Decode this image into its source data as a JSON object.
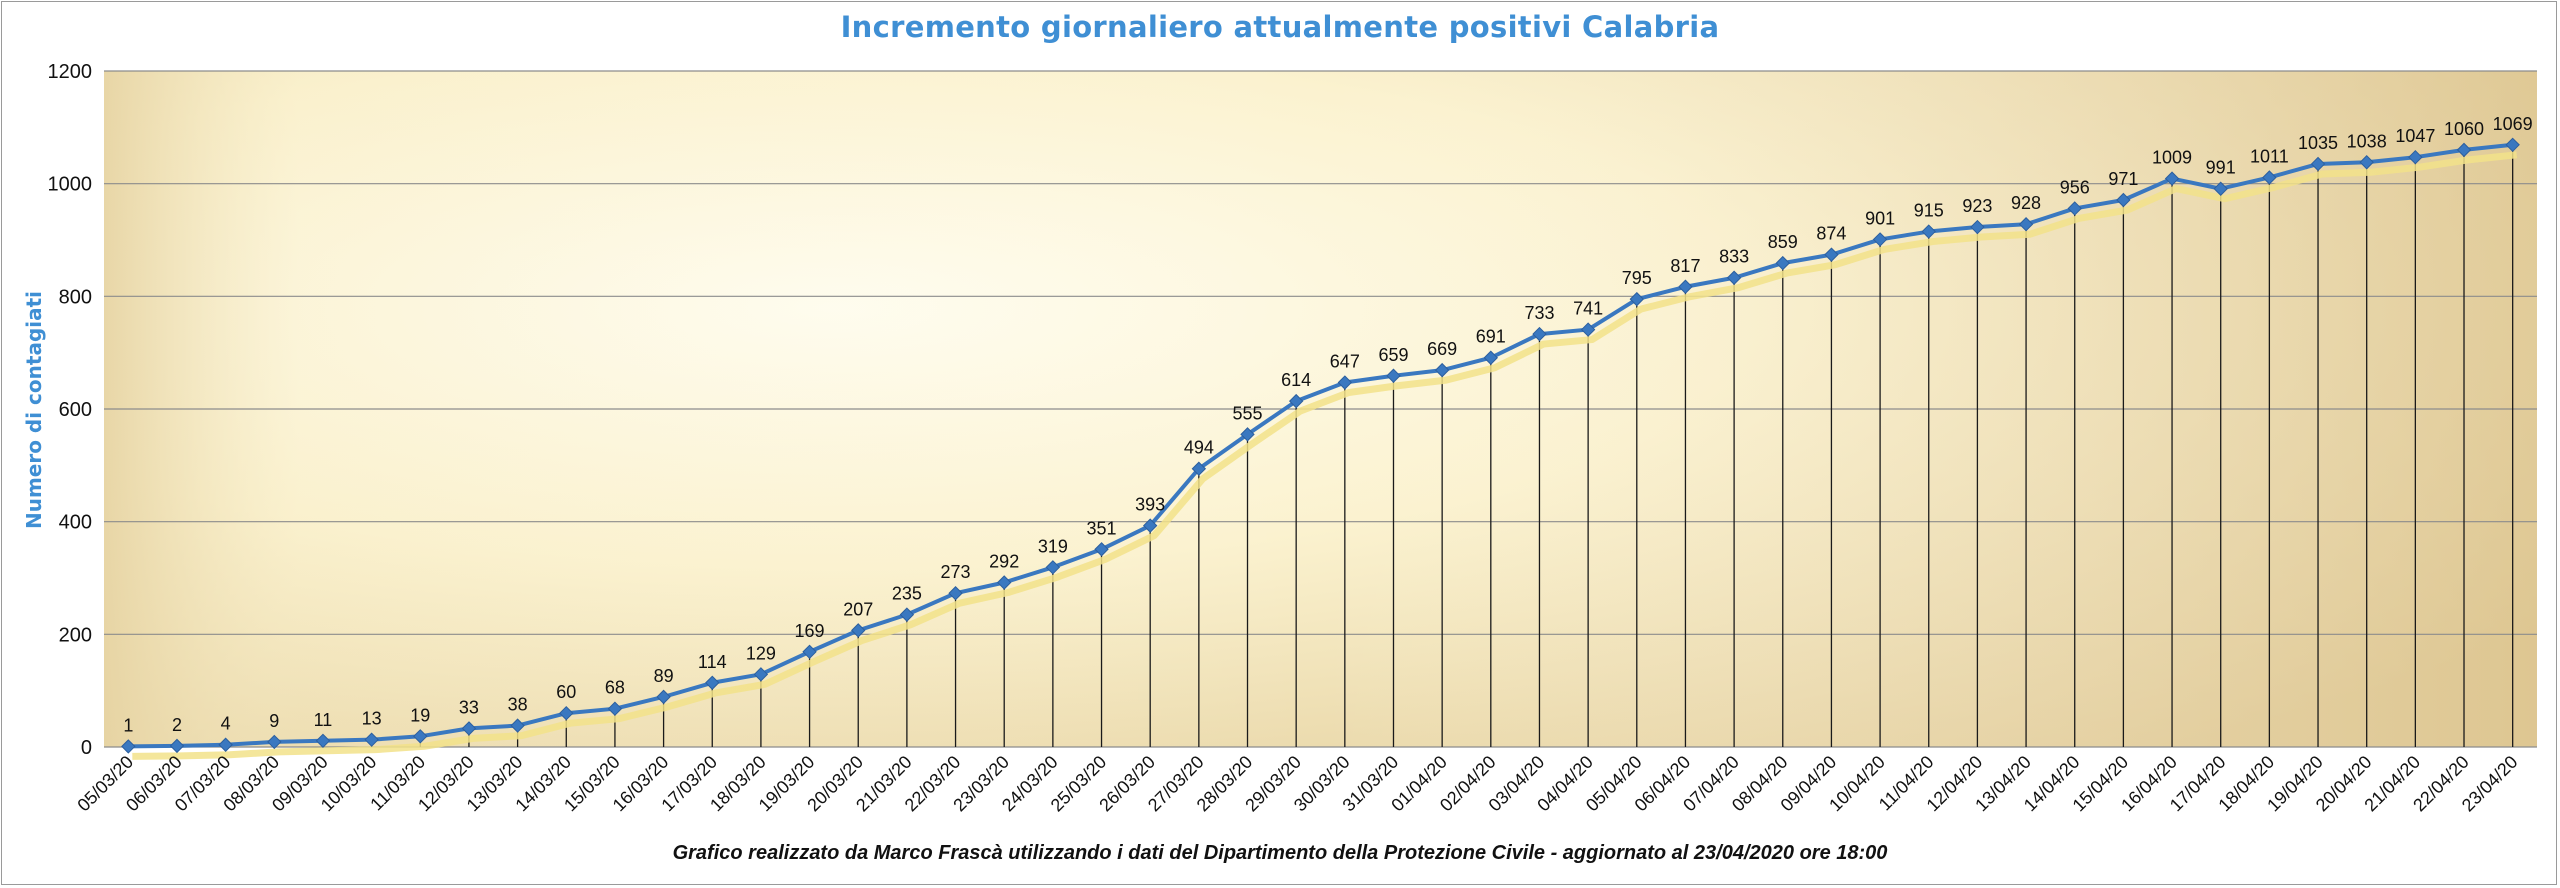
{
  "chart_data": {
    "type": "line",
    "title": "Incremento giornaliero attualmente positivi Calabria",
    "ylabel": "Numero di contagiati",
    "xlabel": "",
    "ylim": [
      0,
      1200
    ],
    "yticks": [
      0,
      200,
      400,
      600,
      800,
      1000,
      1200
    ],
    "grid": true,
    "legend": "none",
    "colors": {
      "line": "#3a78c0",
      "marker": "#3a78c0",
      "shadow": "#f2e28a",
      "grid": "#8c8c8c",
      "drop_lines": "#1a1a1a",
      "plot_bg_light": "#fffcea",
      "plot_bg_dark": "#e2cd98"
    },
    "categories": [
      "05/03/20",
      "06/03/20",
      "07/03/20",
      "08/03/20",
      "09/03/20",
      "10/03/20",
      "11/03/20",
      "12/03/20",
      "13/03/20",
      "14/03/20",
      "15/03/20",
      "16/03/20",
      "17/03/20",
      "18/03/20",
      "19/03/20",
      "20/03/20",
      "21/03/20",
      "22/03/20",
      "23/03/20",
      "24/03/20",
      "25/03/20",
      "26/03/20",
      "27/03/20",
      "28/03/20",
      "29/03/20",
      "30/03/20",
      "31/03/20",
      "01/04/20",
      "02/04/20",
      "03/04/20",
      "04/04/20",
      "05/04/20",
      "06/04/20",
      "07/04/20",
      "08/04/20",
      "09/04/20",
      "10/04/20",
      "11/04/20",
      "12/04/20",
      "13/04/20",
      "14/04/20",
      "15/04/20",
      "16/04/20",
      "17/04/20",
      "18/04/20",
      "19/04/20",
      "20/04/20",
      "21/04/20",
      "22/04/20",
      "23/04/20"
    ],
    "values": [
      1,
      2,
      4,
      9,
      11,
      13,
      19,
      33,
      38,
      60,
      68,
      89,
      114,
      129,
      169,
      207,
      235,
      273,
      292,
      319,
      351,
      393,
      494,
      555,
      614,
      647,
      659,
      669,
      691,
      733,
      741,
      795,
      817,
      833,
      859,
      874,
      901,
      915,
      923,
      928,
      956,
      971,
      1009,
      991,
      1011,
      1035,
      1038,
      1047,
      1060,
      1069
    ]
  },
  "footer": "Grafico  realizzato da Marco Frascà  utilizzando i dati del Dipartimento  della Protezione Civile - aggiornato al 23/04/2020 ore 18:00"
}
